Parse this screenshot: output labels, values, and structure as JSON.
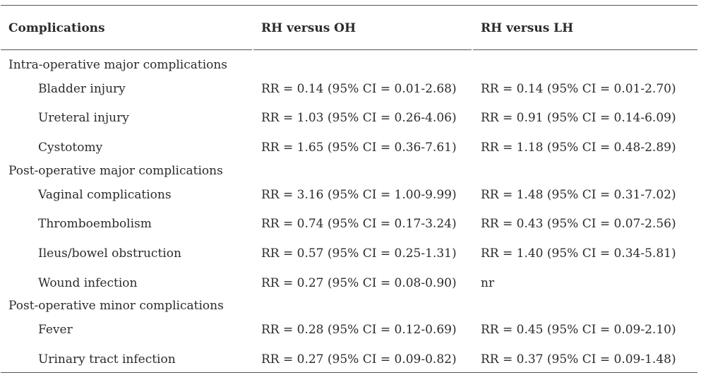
{
  "header": {
    "col1": "Complications",
    "col2": "RH versus OH",
    "col3": "RH versus LH"
  },
  "rows": [
    {
      "label": "Intra-operative major complications",
      "oh": "",
      "lh": "",
      "group": true
    },
    {
      "label": "Bladder injury",
      "oh": "RR = 0.14 (95% CI = 0.01-2.68)",
      "lh": "RR = 0.14 (95% CI = 0.01-2.70)",
      "group": false
    },
    {
      "label": "Ureteral injury",
      "oh": "RR = 1.03 (95% CI = 0.26-4.06)",
      "lh": "RR = 0.91 (95% CI = 0.14-6.09)",
      "group": false
    },
    {
      "label": "Cystotomy",
      "oh": "RR = 1.65 (95% CI = 0.36-7.61)",
      "lh": "RR = 1.18 (95% CI = 0.48-2.89)",
      "group": false
    },
    {
      "label": "Post-operative major complications",
      "oh": "",
      "lh": "",
      "group": true
    },
    {
      "label": "Vaginal complications",
      "oh": "RR = 3.16 (95% CI = 1.00-9.99)",
      "lh": "RR = 1.48 (95% CI = 0.31-7.02)",
      "group": false
    },
    {
      "label": "Thromboembolism",
      "oh": "RR = 0.74 (95% CI = 0.17-3.24)",
      "lh": "RR = 0.43 (95% CI = 0.07-2.56)",
      "group": false
    },
    {
      "label": "Ileus/bowel obstruction",
      "oh": "RR = 0.57 (95% CI = 0.25-1.31)",
      "lh": "RR = 1.40 (95% CI = 0.34-5.81)",
      "group": false
    },
    {
      "label": "Wound infection",
      "oh": "RR = 0.27 (95% CI = 0.08-0.90)",
      "lh": "nr",
      "group": false
    },
    {
      "label": "Post-operative minor complications",
      "oh": "",
      "lh": "",
      "group": true
    },
    {
      "label": "Fever",
      "oh": "RR = 0.28 (95% CI = 0.12-0.69)",
      "lh": "RR = 0.45 (95% CI = 0.09-2.10)",
      "group": false
    },
    {
      "label": "Urinary tract infection",
      "oh": "RR = 0.27 (95% CI = 0.09-0.82)",
      "lh": "RR = 0.37 (95% CI = 0.09-1.48)",
      "group": false
    }
  ]
}
